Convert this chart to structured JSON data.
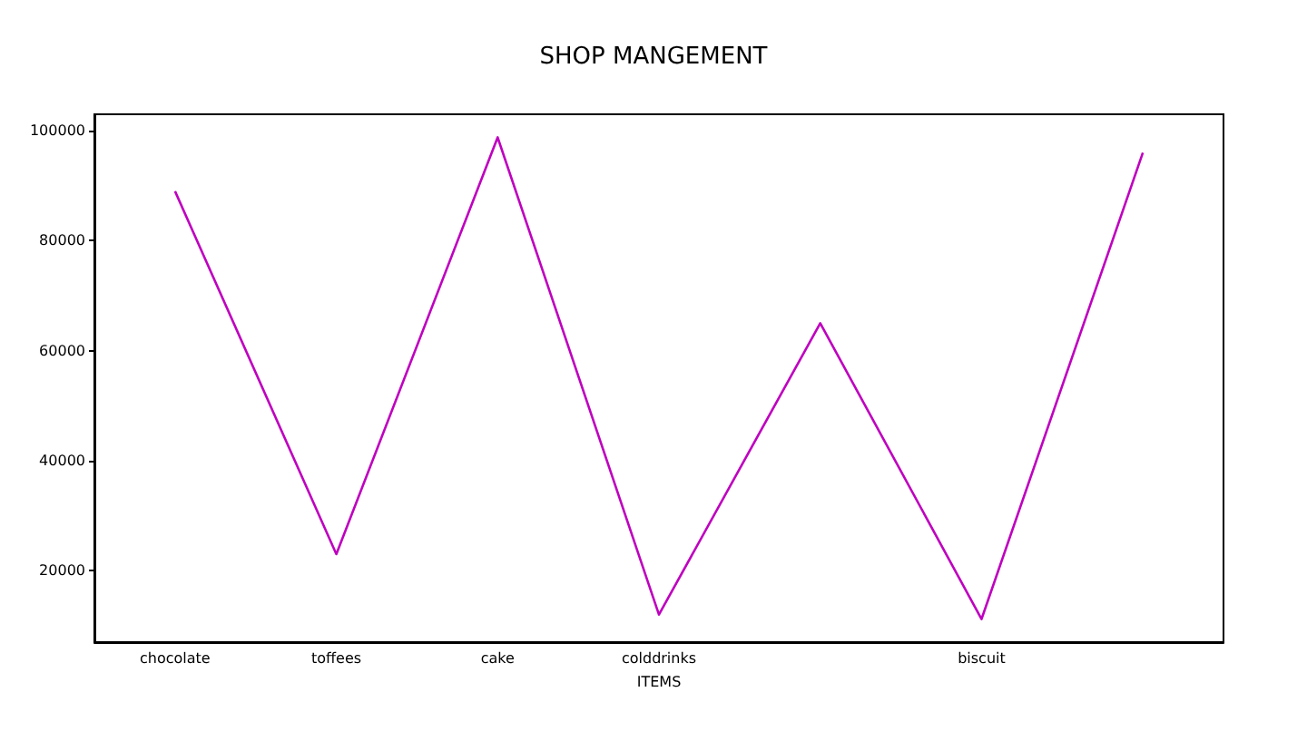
{
  "chart_data": {
    "type": "line",
    "title": "SHOP MANGEMENT",
    "xlabel": "ITEMS",
    "categories": [
      "chocolate",
      "toffees",
      "cake",
      "colddrinks",
      null,
      "biscuit",
      null
    ],
    "series": [
      {
        "color": "#bf00bf",
        "values": [
          89000,
          23000,
          98800,
          12000,
          65000,
          11200,
          96000
        ]
      }
    ],
    "ylim": [
      7000,
      103000
    ],
    "yticks": [
      20000,
      40000,
      60000,
      80000,
      100000
    ],
    "grid": false,
    "marker": "none"
  }
}
